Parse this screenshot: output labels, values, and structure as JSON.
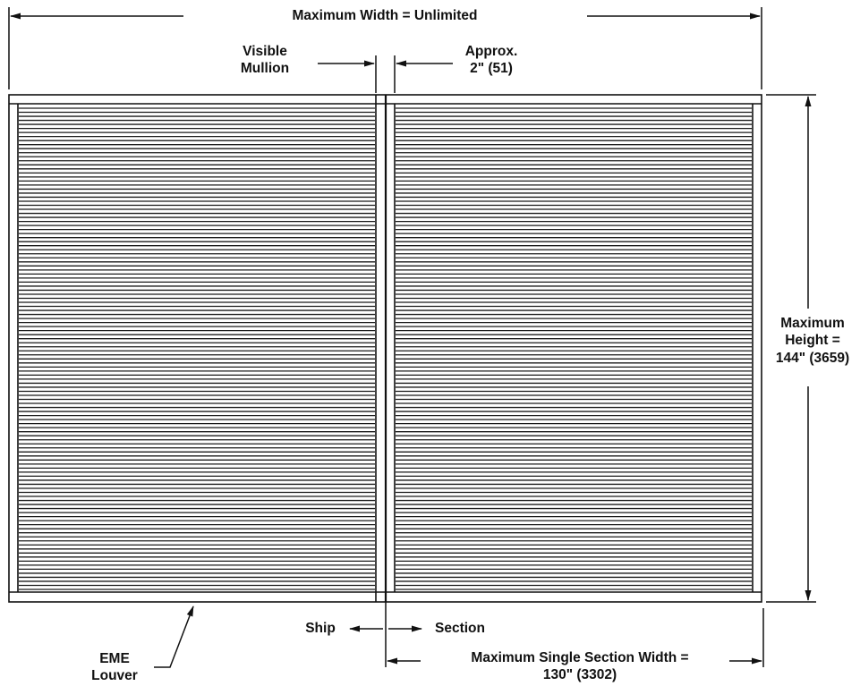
{
  "labels": {
    "max_width": "Maximum Width = Unlimited",
    "visible_mullion": [
      "Visible",
      "Mullion"
    ],
    "approx_width": [
      "Approx.",
      "2\" (51)"
    ],
    "max_height": [
      "Maximum",
      "Height =",
      "144\" (3659)"
    ],
    "ship": "Ship",
    "section": "Section",
    "max_section_width": [
      "Maximum Single Section Width =",
      "130\" (3302)"
    ],
    "product": [
      "EME",
      "Louver"
    ]
  },
  "louver": {
    "sections": 2,
    "blade_count": 120,
    "stroke_color": "#1a1a1a"
  }
}
